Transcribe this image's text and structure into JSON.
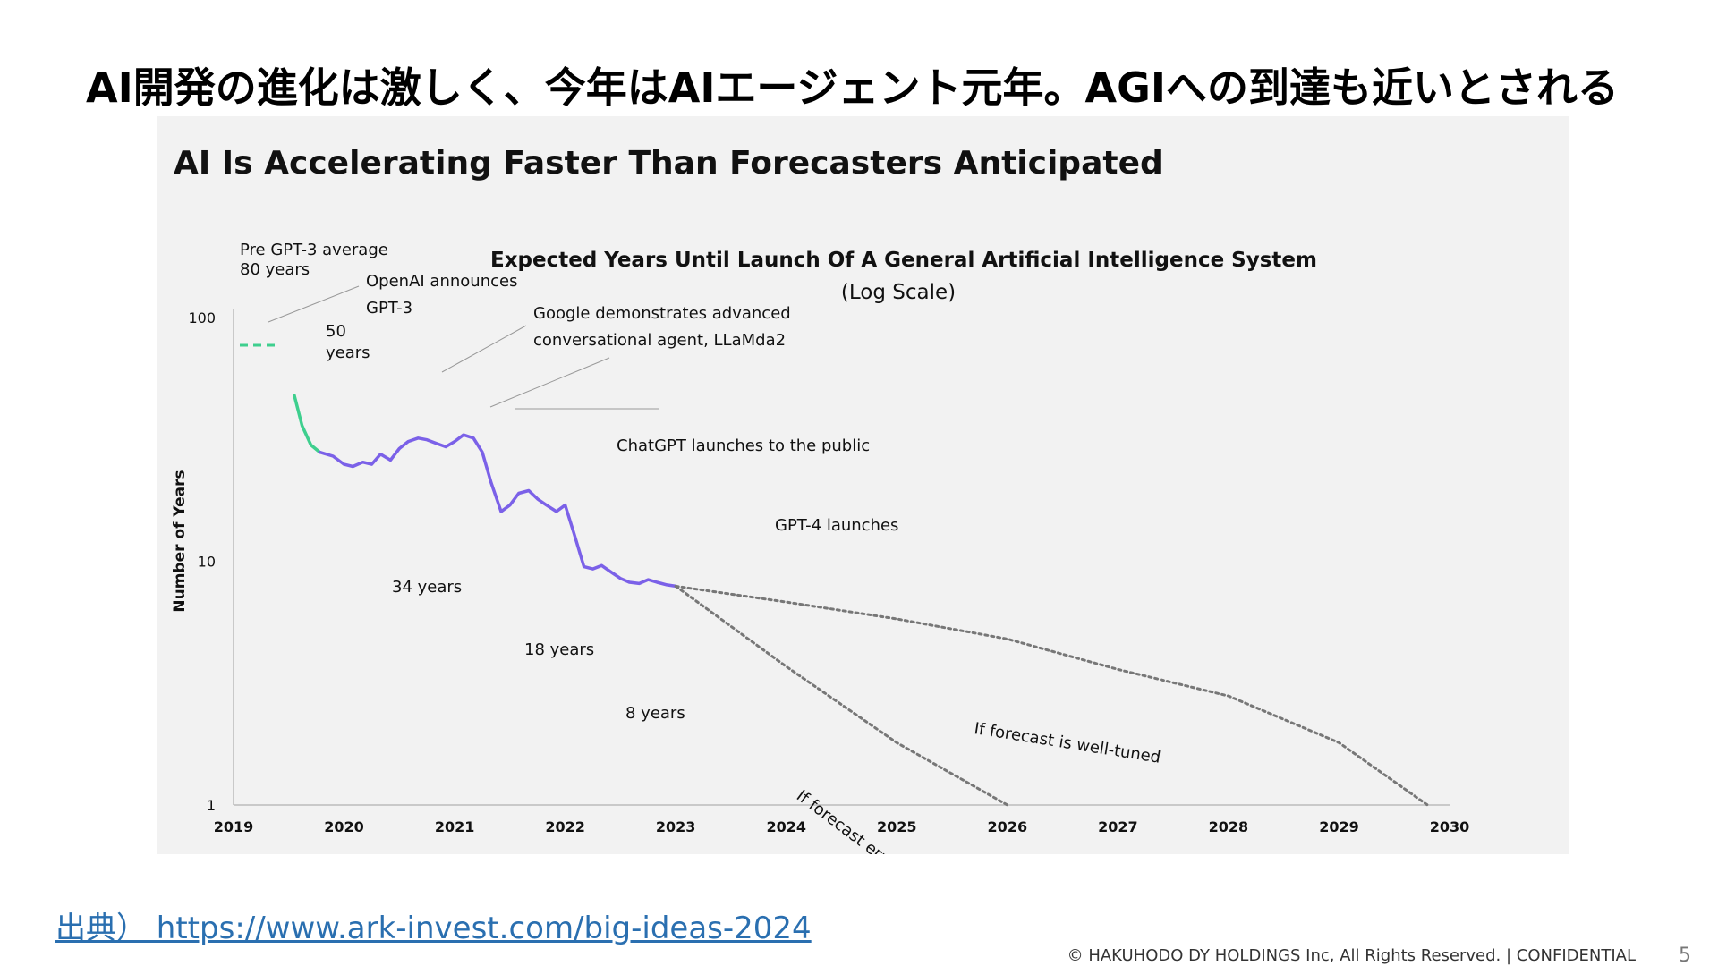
{
  "slide": {
    "headline": "AI開発の進化は激しく、今年はAIエージェント元年。AGIへの到達も近いとされる",
    "source_link": "出典） https://www.ark-invest.com/big-ideas-2024",
    "footer": "© HAKUHODO DY HOLDINGS Inc, All Rights Reserved. | CONFIDENTIAL",
    "page_number": "5"
  },
  "chart_data": {
    "type": "line",
    "heading": "AI Is Accelerating Faster Than Forecasters Anticipated",
    "title": "Expected Years Until Launch Of A General Artificial Intelligence System",
    "subtitle": "(Log Scale)",
    "ylabel": "Number of Years",
    "xlabel": "",
    "scale": "log",
    "grid": false,
    "xlim": [
      2019,
      2030
    ],
    "ylim": [
      1,
      100
    ],
    "x_ticks": [
      "2019",
      "2020",
      "2021",
      "2022",
      "2023",
      "2024",
      "2025",
      "2026",
      "2027",
      "2028",
      "2029",
      "2030"
    ],
    "y_ticks": [
      "100",
      "10",
      "1"
    ],
    "colors": {
      "pre": "#3ecf8e",
      "main": "#7b61e8",
      "forecast": "#777777",
      "axis": "#bbbbbb"
    },
    "series": [
      {
        "key": "pre",
        "x": [
          2019.55,
          2019.62,
          2019.7,
          2019.78
        ],
        "y": [
          48,
          36,
          30,
          28
        ]
      },
      {
        "key": "main",
        "x": [
          2019.78,
          2019.9,
          2020.0,
          2020.08,
          2020.17,
          2020.25,
          2020.33,
          2020.42,
          2020.5,
          2020.58,
          2020.67,
          2020.75,
          2020.83,
          2020.92,
          2021.0,
          2021.08,
          2021.17,
          2021.25,
          2021.33,
          2021.42,
          2021.5,
          2021.58,
          2021.67,
          2021.75,
          2021.83,
          2021.92,
          2022.0,
          2022.08,
          2022.17,
          2022.25,
          2022.33,
          2022.42,
          2022.5,
          2022.58,
          2022.67,
          2022.75,
          2022.83,
          2022.92,
          2023.0
        ],
        "y": [
          28,
          27,
          25,
          24.5,
          25.5,
          25,
          27.5,
          26,
          29,
          31,
          32,
          31.5,
          30.5,
          29.5,
          31,
          33,
          32,
          28,
          21,
          16,
          17,
          19,
          19.5,
          18,
          17,
          16,
          17,
          13,
          9.5,
          9.3,
          9.6,
          9.0,
          8.5,
          8.2,
          8.1,
          8.4,
          8.2,
          8.0,
          7.9
        ]
      },
      {
        "key": "forecast-well-tuned",
        "x": [
          2023.0,
          2024.0,
          2025.0,
          2026.0,
          2027.0,
          2028.0,
          2029.0,
          2029.8
        ],
        "y": [
          7.9,
          6.8,
          5.8,
          4.8,
          3.6,
          2.8,
          1.8,
          1.0
        ]
      },
      {
        "key": "forecast-error",
        "x": [
          2023.0,
          2024.0,
          2025.0,
          2026.0
        ],
        "y": [
          7.9,
          3.7,
          1.8,
          1.0
        ]
      }
    ],
    "annotations": {
      "pre_avg_line1": "Pre GPT-3 average",
      "pre_avg_line2": "80 years",
      "openai_line1": "OpenAI announces",
      "openai_line2": "GPT-3",
      "fifty_line1": "50",
      "fifty_line2": "years",
      "google_line1": "Google demonstrates advanced",
      "google_line2": "conversational agent, LLaMda2",
      "chatgpt": "ChatGPT launches to the public",
      "gpt4": "GPT-4 launches",
      "years34": "34 years",
      "years18": "18 years",
      "years8": "8 years",
      "well_tuned": "If forecast is well-tuned",
      "error_continues": "If forecast error continues"
    }
  }
}
